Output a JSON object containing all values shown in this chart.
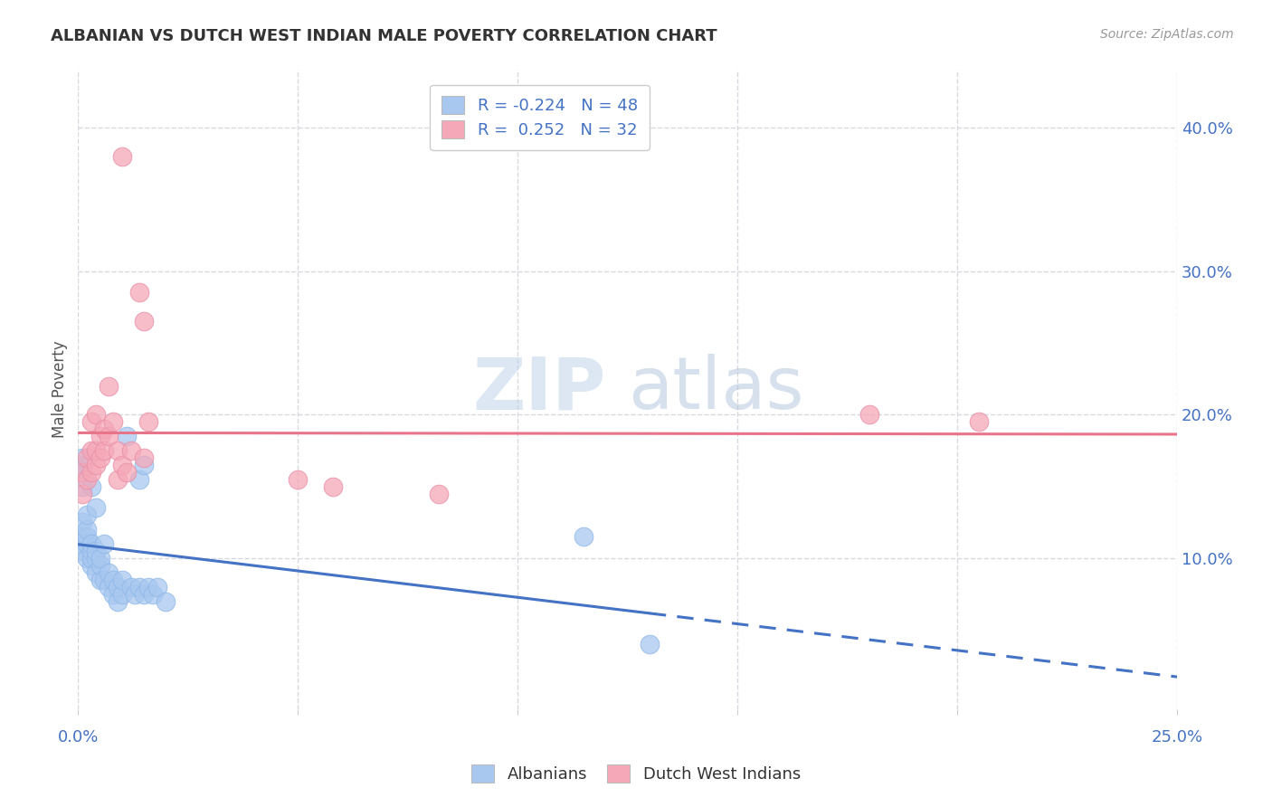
{
  "title": "ALBANIAN VS DUTCH WEST INDIAN MALE POVERTY CORRELATION CHART",
  "source": "Source: ZipAtlas.com",
  "ylabel_label": "Male Poverty",
  "watermark": "ZIPatlas",
  "albanians_color": "#a8c8f0",
  "dutch_color": "#f5a8b8",
  "albanian_line_color": "#4472c4",
  "dutch_line_color": "#e8748a",
  "legend_albanian_label": "R = -0.224   N = 48",
  "legend_dutch_label": "R =  0.252   N = 32",
  "legend_albanians": "Albanians",
  "legend_dutch": "Dutch West Indians",
  "albanian_x": [
    0.001,
    0.001,
    0.001,
    0.001,
    0.001,
    0.001,
    0.001,
    0.001,
    0.002,
    0.002,
    0.002,
    0.002,
    0.002,
    0.003,
    0.003,
    0.003,
    0.003,
    0.003,
    0.004,
    0.004,
    0.004,
    0.004,
    0.005,
    0.005,
    0.005,
    0.006,
    0.006,
    0.007,
    0.007,
    0.008,
    0.008,
    0.009,
    0.009,
    0.01,
    0.01,
    0.011,
    0.012,
    0.013,
    0.014,
    0.014,
    0.015,
    0.015,
    0.016,
    0.017,
    0.018,
    0.02,
    0.115,
    0.13
  ],
  "albanian_y": [
    0.105,
    0.11,
    0.115,
    0.125,
    0.15,
    0.16,
    0.165,
    0.17,
    0.1,
    0.11,
    0.115,
    0.12,
    0.13,
    0.095,
    0.1,
    0.105,
    0.11,
    0.15,
    0.09,
    0.1,
    0.105,
    0.135,
    0.085,
    0.095,
    0.1,
    0.085,
    0.11,
    0.08,
    0.09,
    0.075,
    0.085,
    0.07,
    0.08,
    0.075,
    0.085,
    0.185,
    0.08,
    0.075,
    0.08,
    0.155,
    0.075,
    0.165,
    0.08,
    0.075,
    0.08,
    0.07,
    0.115,
    0.04
  ],
  "dutch_x": [
    0.001,
    0.001,
    0.002,
    0.002,
    0.003,
    0.003,
    0.003,
    0.004,
    0.004,
    0.004,
    0.005,
    0.005,
    0.006,
    0.006,
    0.007,
    0.007,
    0.008,
    0.009,
    0.009,
    0.01,
    0.01,
    0.011,
    0.012,
    0.014,
    0.015,
    0.015,
    0.016,
    0.05,
    0.058,
    0.082,
    0.18,
    0.205
  ],
  "dutch_y": [
    0.145,
    0.16,
    0.155,
    0.17,
    0.16,
    0.175,
    0.195,
    0.165,
    0.175,
    0.2,
    0.17,
    0.185,
    0.175,
    0.19,
    0.185,
    0.22,
    0.195,
    0.155,
    0.175,
    0.38,
    0.165,
    0.16,
    0.175,
    0.285,
    0.265,
    0.17,
    0.195,
    0.155,
    0.15,
    0.145,
    0.2,
    0.195
  ],
  "xlim": [
    0.0,
    0.25
  ],
  "ylim": [
    -0.005,
    0.44
  ],
  "ylabel_ticks": [
    0.1,
    0.2,
    0.3,
    0.4
  ],
  "ylabel_tick_labels": [
    "10.0%",
    "20.0%",
    "30.0%",
    "40.0%"
  ],
  "xtick_minor": [
    0.0,
    0.05,
    0.1,
    0.15,
    0.2,
    0.25
  ],
  "xlabel_edge_labels": [
    "0.0%",
    "25.0%"
  ],
  "xlabel_edge_vals": [
    0.0,
    0.25
  ],
  "background_color": "#ffffff",
  "grid_color": "#d8d8e0",
  "title_color": "#333333",
  "source_color": "#999999",
  "tick_color": "#4472c4",
  "ylabel_label_color": "#555555"
}
